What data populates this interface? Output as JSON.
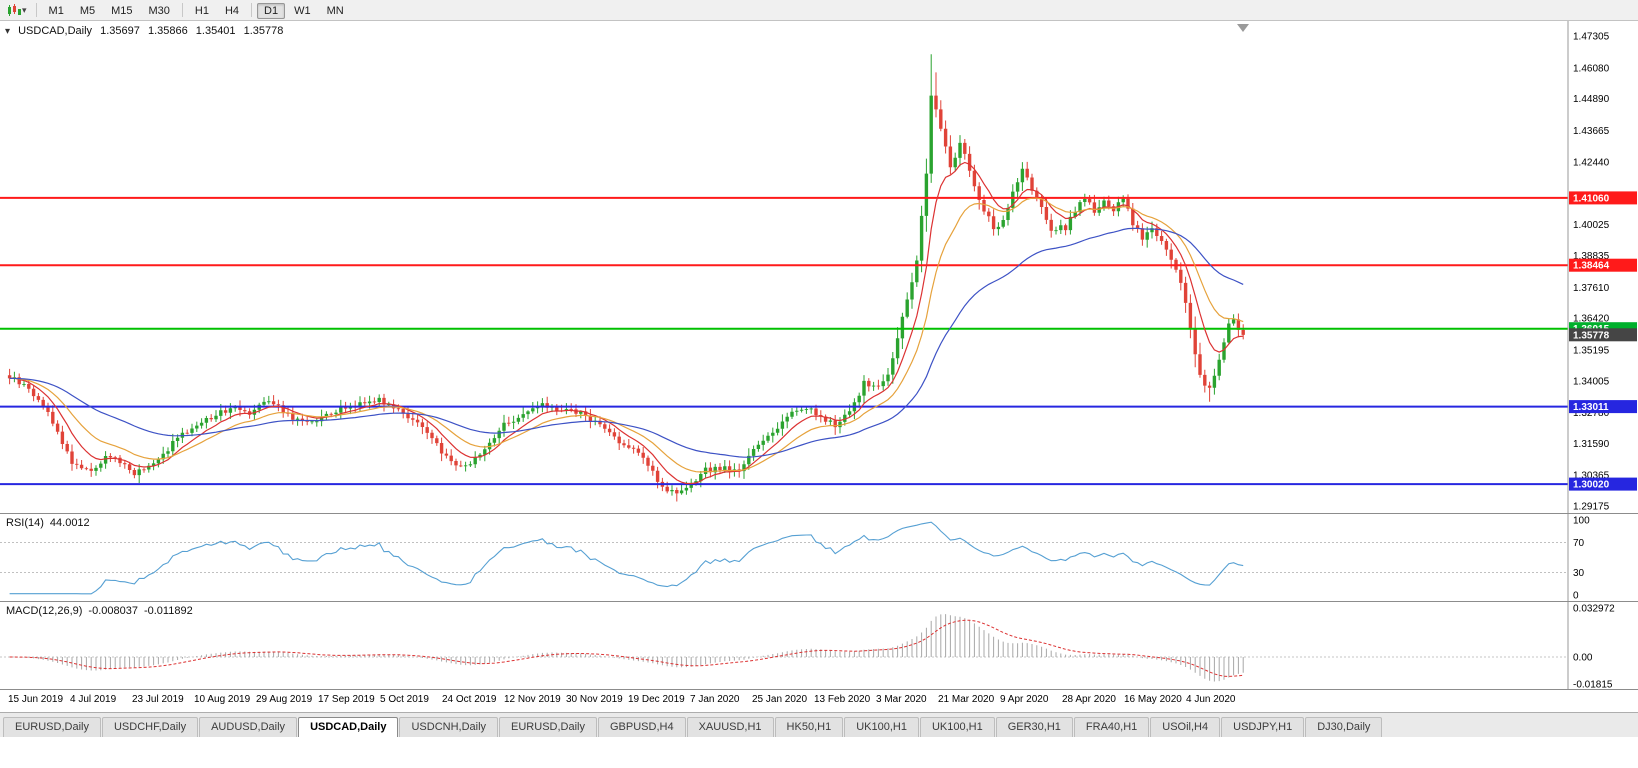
{
  "toolbar": {
    "timeframes": [
      "M1",
      "M5",
      "M15",
      "M30",
      "H1",
      "H4",
      "D1",
      "W1",
      "MN"
    ],
    "active_timeframe": "D1"
  },
  "chart": {
    "symbol_header": {
      "symbol": "USDCAD,Daily",
      "open": "1.35697",
      "high": "1.35866",
      "low": "1.35401",
      "close": "1.35778"
    },
    "price_axis": {
      "ticks": [
        "1.47305",
        "1.46080",
        "1.44890",
        "1.43665",
        "1.42440",
        "1.40025",
        "1.38835",
        "1.37610",
        "1.36420",
        "1.35195",
        "1.34005",
        "1.32780",
        "1.31590",
        "1.30365",
        "1.29175"
      ],
      "badges": [
        {
          "label": "1.41060",
          "price": 1.4106,
          "color": "#ff1a1a"
        },
        {
          "label": "1.38464",
          "price": 1.38464,
          "color": "#ff1a1a"
        },
        {
          "label": "1.36015",
          "price": 1.36015,
          "color": "#00b02c"
        },
        {
          "label": "1.35778",
          "price": 1.35778,
          "color": "#454545"
        },
        {
          "label": "1.33011",
          "price": 1.33011,
          "color": "#2626e0"
        },
        {
          "label": "1.30020",
          "price": 1.3002,
          "color": "#2626e0"
        }
      ]
    },
    "time_axis": [
      "15 Jun 2019",
      "4 Jul 2019",
      "23 Jul 2019",
      "10 Aug 2019",
      "29 Aug 2019",
      "17 Sep 2019",
      "5 Oct 2019",
      "24 Oct 2019",
      "12 Nov 2019",
      "30 Nov 2019",
      "19 Dec 2019",
      "7 Jan 2020",
      "25 Jan 2020",
      "13 Feb 2020",
      "3 Mar 2020",
      "21 Mar 2020",
      "9 Apr 2020",
      "28 Apr 2020",
      "16 May 2020",
      "4 Jun 2020"
    ]
  },
  "rsi": {
    "name": "RSI(14)",
    "value": "44.0012",
    "axis_labels": [
      "100",
      "70",
      "30",
      "0"
    ],
    "levels": [
      70,
      30
    ]
  },
  "macd": {
    "name": "MACD(12,26,9)",
    "macd_value": "-0.008037",
    "signal_value": "-0.011892",
    "axis_labels": [
      "0.032972",
      "0.00",
      "-0.01815"
    ]
  },
  "tabs": {
    "items": [
      "EURUSD,Daily",
      "USDCHF,Daily",
      "AUDUSD,Daily",
      "USDCAD,Daily",
      "USDCNH,Daily",
      "EURUSD,Daily",
      "GBPUSD,H4",
      "XAUUSD,H1",
      "HK50,H1",
      "UK100,H1",
      "UK100,H1",
      "GER30,H1",
      "FRA40,H1",
      "USOil,H4",
      "USDJPY,H1",
      "DJ30,Daily"
    ],
    "active_index": 3
  },
  "colors": {
    "up": "#2aa32f",
    "down": "#e04338",
    "line_red": "#ff1a1a",
    "line_green": "#00c000",
    "line_blue": "#2626e0",
    "rsi_line": "#56a0d3",
    "rsi_level": "#c0c0c0",
    "macd_hist": "#a8a8a8",
    "macd_signal": "#dc3232",
    "axis_line": "#9a9a9a",
    "axis_text": "#000000",
    "badge_text": "#ffffff"
  },
  "chart_data": {
    "type": "candlestick",
    "symbol": "USDCAD",
    "timeframe": "Daily",
    "title": "USDCAD,Daily",
    "candle_count": 258,
    "y_max": 1.47884,
    "y_min": 1.28906,
    "last_ohlc": {
      "open": 1.35697,
      "high": 1.35866,
      "low": 1.35401,
      "close": 1.35778
    },
    "close_anchors": [
      [
        0,
        1.3415
      ],
      [
        4,
        1.337
      ],
      [
        8,
        1.328
      ],
      [
        13,
        1.3085
      ],
      [
        17,
        1.3055
      ],
      [
        21,
        1.3115
      ],
      [
        26,
        1.3045
      ],
      [
        30,
        1.3075
      ],
      [
        34,
        1.316
      ],
      [
        39,
        1.3235
      ],
      [
        43,
        1.327
      ],
      [
        47,
        1.3305
      ],
      [
        50,
        1.328
      ],
      [
        53,
        1.333
      ],
      [
        56,
        1.33
      ],
      [
        60,
        1.3245
      ],
      [
        65,
        1.3255
      ],
      [
        69,
        1.329
      ],
      [
        73,
        1.3315
      ],
      [
        77,
        1.333
      ],
      [
        81,
        1.329
      ],
      [
        85,
        1.324
      ],
      [
        89,
        1.315
      ],
      [
        93,
        1.307
      ],
      [
        97,
        1.3095
      ],
      [
        100,
        1.316
      ],
      [
        103,
        1.3235
      ],
      [
        107,
        1.327
      ],
      [
        111,
        1.3305
      ],
      [
        115,
        1.329
      ],
      [
        119,
        1.3275
      ],
      [
        123,
        1.323
      ],
      [
        127,
        1.317
      ],
      [
        130,
        1.313
      ],
      [
        133,
        1.308
      ],
      [
        136,
        1.299
      ],
      [
        139,
        1.2958
      ],
      [
        142,
        1.2995
      ],
      [
        145,
        1.3055
      ],
      [
        149,
        1.3065
      ],
      [
        152,
        1.3045
      ],
      [
        155,
        1.314
      ],
      [
        159,
        1.3205
      ],
      [
        163,
        1.328
      ],
      [
        166,
        1.33
      ],
      [
        169,
        1.3255
      ],
      [
        172,
        1.323
      ],
      [
        175,
        1.328
      ],
      [
        178,
        1.339
      ],
      [
        181,
        1.338
      ],
      [
        183,
        1.342
      ],
      [
        185,
        1.356
      ],
      [
        187,
        1.372
      ],
      [
        189,
        1.386
      ],
      [
        191,
        1.42
      ],
      [
        192,
        1.45
      ],
      [
        193,
        1.445
      ],
      [
        194,
        1.438
      ],
      [
        196,
        1.422
      ],
      [
        198,
        1.432
      ],
      [
        199,
        1.428
      ],
      [
        201,
        1.415
      ],
      [
        203,
        1.406
      ],
      [
        205,
        1.399
      ],
      [
        207,
        1.401
      ],
      [
        209,
        1.412
      ],
      [
        211,
        1.421
      ],
      [
        213,
        1.414
      ],
      [
        215,
        1.406
      ],
      [
        217,
        1.399
      ],
      [
        220,
        1.399
      ],
      [
        222,
        1.406
      ],
      [
        224,
        1.411
      ],
      [
        226,
        1.405
      ],
      [
        228,
        1.41
      ],
      [
        230,
        1.406
      ],
      [
        232,
        1.41
      ],
      [
        234,
        1.401
      ],
      [
        236,
        1.395
      ],
      [
        238,
        1.399
      ],
      [
        240,
        1.395
      ],
      [
        242,
        1.386
      ],
      [
        244,
        1.378
      ],
      [
        245,
        1.37
      ],
      [
        246,
        1.36
      ],
      [
        247,
        1.35
      ],
      [
        248,
        1.343
      ],
      [
        249,
        1.339
      ],
      [
        250,
        1.337
      ],
      [
        251,
        1.342
      ],
      [
        252,
        1.348
      ],
      [
        253,
        1.355
      ],
      [
        254,
        1.362
      ],
      [
        255,
        1.364
      ],
      [
        256,
        1.359
      ],
      [
        257,
        1.35778
      ]
    ],
    "wick_overrides": {
      "highs": [
        [
          192,
          1.466
        ],
        [
          193,
          1.459
        ]
      ],
      "lows": [
        [
          139,
          1.2935
        ],
        [
          250,
          1.332
        ]
      ]
    },
    "moving_averages": [
      {
        "name": "fast",
        "period": 8,
        "color": "#dc3232"
      },
      {
        "name": "medium",
        "period": 17,
        "color": "#e6a23c"
      },
      {
        "name": "slow",
        "period": 45,
        "color": "#3d52c5"
      }
    ],
    "horizontal_lines": [
      {
        "price": 1.4106,
        "color": "#ff1a1a",
        "width": 2
      },
      {
        "price": 1.38464,
        "color": "#ff1a1a",
        "width": 2
      },
      {
        "price": 1.36015,
        "color": "#00c000",
        "width": 2
      },
      {
        "price": 1.33011,
        "color": "#2626e0",
        "width": 2
      },
      {
        "price": 1.3002,
        "color": "#2626e0",
        "width": 2
      }
    ],
    "rsi_period": 14,
    "macd_params": [
      12,
      26,
      9
    ],
    "macd_axis": {
      "max": 0.032972,
      "min": -0.01815
    }
  }
}
